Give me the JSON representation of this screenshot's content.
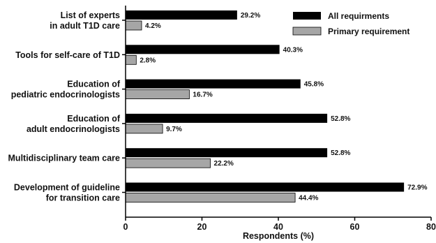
{
  "chart_data": {
    "type": "bar",
    "orientation": "horizontal",
    "categories": [
      [
        "List of experts",
        "in adult T1D care"
      ],
      [
        "Tools for self-care of T1D"
      ],
      [
        "Education of",
        "pediatric endocrinologists"
      ],
      [
        "Education of",
        "adult endocrinologists"
      ],
      [
        "Multidisciplinary team care"
      ],
      [
        "Development of guideline",
        "for transition care"
      ]
    ],
    "series": [
      {
        "name": "All requirments",
        "color": "#000000",
        "values": [
          29.2,
          40.3,
          45.8,
          52.8,
          52.8,
          72.9
        ],
        "labels": [
          "29.2%",
          "40.3%",
          "45.8%",
          "52.8%",
          "52.8%",
          "72.9%"
        ]
      },
      {
        "name": "Primary requirement",
        "color": "#a6a6a6",
        "values": [
          4.2,
          2.8,
          16.7,
          9.7,
          22.2,
          44.4
        ],
        "labels": [
          "4.2%",
          "2.8%",
          "16.7%",
          "9.7%",
          "22.2%",
          "44.4%"
        ]
      }
    ],
    "xlabel": "Respondents (%)",
    "ylabel": "",
    "xlim": [
      0,
      80
    ],
    "x_ticks": [
      0,
      20,
      40,
      60,
      80
    ],
    "x_tick_labels": [
      "0",
      "20",
      "40",
      "60",
      "80"
    ],
    "grid": false,
    "legend_position": "top-right"
  }
}
